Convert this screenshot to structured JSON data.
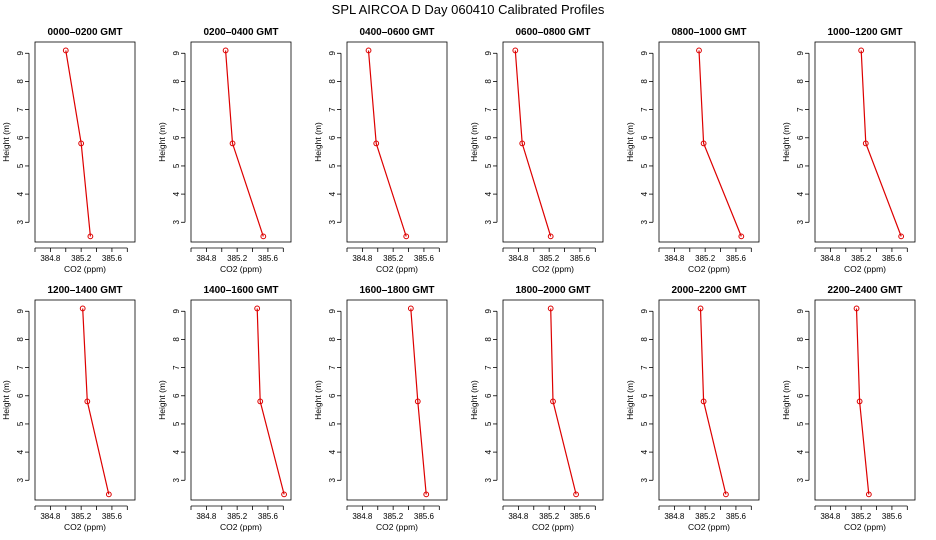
{
  "suptitle": "SPL AIRCOA D  Day 060410  Calibrated Profiles",
  "colors": {
    "series": "#dd0000",
    "axes": "#000000"
  },
  "chart_data": {
    "type": "line",
    "panel_xlabel": "CO2 (ppm)",
    "panel_ylabel": "Height (m)",
    "xlim": [
      384.6,
      385.9
    ],
    "ylim": [
      2.3,
      9.4
    ],
    "x_ticks": [
      "384.8",
      "385.2",
      "385.6"
    ],
    "x_tick_values": [
      384.8,
      385.2,
      385.6
    ],
    "y_ticks": [
      "3",
      "4",
      "5",
      "6",
      "7",
      "8",
      "9"
    ],
    "y_tick_values": [
      3,
      4,
      5,
      6,
      7,
      8,
      9
    ],
    "heights": [
      9.1,
      5.8,
      2.5
    ],
    "panels": [
      {
        "title": "0000–0200 GMT",
        "co2": [
          385.0,
          385.2,
          385.32
        ]
      },
      {
        "title": "0200–0400 GMT",
        "co2": [
          385.05,
          385.14,
          385.54
        ]
      },
      {
        "title": "0400–0600 GMT",
        "co2": [
          384.88,
          384.98,
          385.37
        ]
      },
      {
        "title": "0600–0800 GMT",
        "co2": [
          384.76,
          384.85,
          385.22
        ]
      },
      {
        "title": "0800–1000 GMT",
        "co2": [
          385.12,
          385.18,
          385.67
        ]
      },
      {
        "title": "1000–1200 GMT",
        "co2": [
          385.2,
          385.26,
          385.72
        ]
      },
      {
        "title": "1200–1400 GMT",
        "co2": [
          385.22,
          385.28,
          385.56
        ]
      },
      {
        "title": "1400–1600 GMT",
        "co2": [
          385.46,
          385.5,
          385.81
        ]
      },
      {
        "title": "1600–1800 GMT",
        "co2": [
          385.43,
          385.52,
          385.63
        ]
      },
      {
        "title": "1800–2000 GMT",
        "co2": [
          385.22,
          385.25,
          385.55
        ]
      },
      {
        "title": "2000–2200 GMT",
        "co2": [
          385.14,
          385.18,
          385.47
        ]
      },
      {
        "title": "2200–2400 GMT",
        "co2": [
          385.14,
          385.18,
          385.3
        ]
      }
    ]
  }
}
